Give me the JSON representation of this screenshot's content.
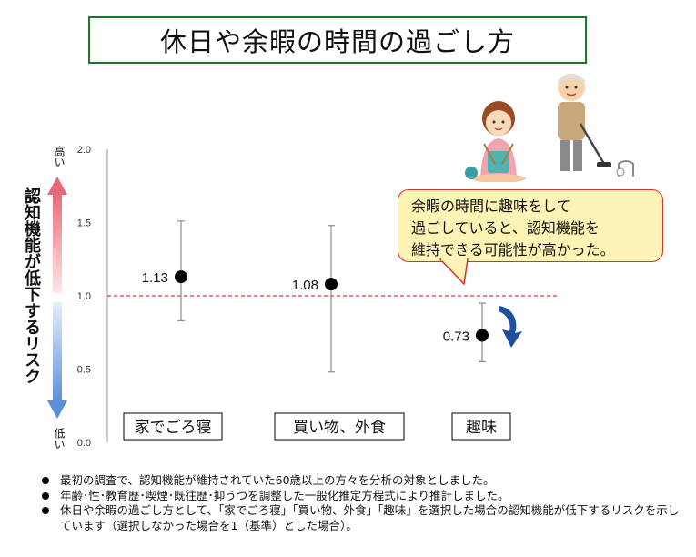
{
  "title": "休日や余暇の時間の過ごし方",
  "y_axis": {
    "label": "認知機能が低下するリスク",
    "top_label": "高い",
    "bottom_label": "低い"
  },
  "callout": {
    "lines": [
      "余暇の時間に趣味をして",
      "過ごしていると、認知機能を",
      "維持できる可能性が高かった。"
    ]
  },
  "notes": [
    "最初の調査で、認知機能が維持されていた60歳以上の方々を分析の対象としました。",
    "年齢･性･教育歴･喫煙･既往歴･抑うつを調整した一般化推定方程式により推計しました。",
    "休日や余暇の過ごし方として、「家でごろ寝」「買い物、外食」「趣味」を選択した場合の認知機能が低下するリスクを示しています（選択しなかった場合を1（基準）とした場合）。"
  ],
  "colors": {
    "title_border": "#1a7a2a",
    "reference_line": "#e03a3a",
    "callout_bg": "#fdf3b4",
    "callout_border": "#d7322a",
    "arrow_high": "#e86a78",
    "arrow_low": "#5b8fd6",
    "down_arrow": "#1f4e9c"
  },
  "chart_data": {
    "type": "scatter",
    "title": "休日や余暇の時間の過ごし方",
    "ylabel": "認知機能が低下するリスク",
    "ylim": [
      0,
      2.0
    ],
    "yticks": [
      "0.0",
      "0.5",
      "1.0",
      "1.5",
      "2.0"
    ],
    "categories": [
      "家でごろ寝",
      "買い物、外食",
      "趣味"
    ],
    "points": [
      {
        "category": "家でごろ寝",
        "value": 1.13,
        "label": "1.13",
        "ci_low": 0.83,
        "ci_high": 1.51
      },
      {
        "category": "買い物、外食",
        "value": 1.08,
        "label": "1.08",
        "ci_low": 0.48,
        "ci_high": 1.48
      },
      {
        "category": "趣味",
        "value": 0.73,
        "label": "0.73",
        "ci_low": 0.55,
        "ci_high": 0.95
      }
    ],
    "reference_value": 1.0,
    "grid": false
  }
}
